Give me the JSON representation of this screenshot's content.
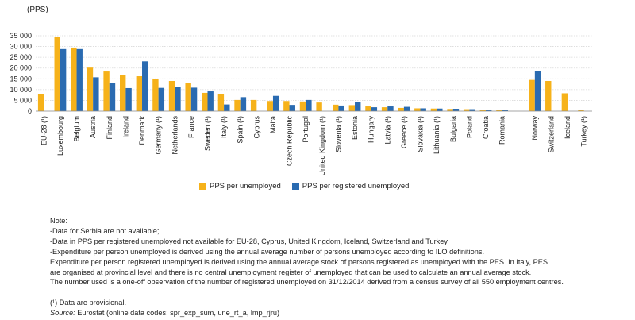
{
  "chart_data": {
    "type": "bar",
    "unit_label": "(PPS)",
    "y_ticks": [
      "0",
      "5 000",
      "10 000",
      "15 000",
      "20 000",
      "25 000",
      "30 000",
      "35 000"
    ],
    "ylim": [
      0,
      35000
    ],
    "grid": true,
    "legend_position": "bottom",
    "categories": [
      "EU-28 (¹)",
      "Luxembourg",
      "Belgium",
      "Austria",
      "Finland",
      "Ireland",
      "Denmark",
      "Germany (¹)",
      "Netherlands",
      "France",
      "Sweden (¹)",
      "Italy (¹)",
      "Spain (¹)",
      "Cyprus",
      "Malta",
      "Czech Republic",
      "Portugal",
      "United Kingdom (¹)",
      "Slovenia (¹)",
      "Estonia",
      "Hungary",
      "Latvia (¹)",
      "Greece (¹)",
      "Slovakia (¹)",
      "Lithuania (¹)",
      "Bulgaria",
      "Poland",
      "Croatia",
      "Romania",
      "",
      "Norway",
      "Switzerland",
      "Iceland",
      "Turkey (¹)"
    ],
    "series": [
      {
        "name": "PPS per unemployed",
        "color": "#f6b21a",
        "values": [
          7800,
          34500,
          29500,
          20200,
          18400,
          16900,
          16200,
          15100,
          14000,
          13000,
          8500,
          8000,
          5200,
          5200,
          4700,
          4700,
          4500,
          4000,
          3000,
          2800,
          2200,
          1800,
          1500,
          1300,
          1200,
          1000,
          900,
          700,
          500,
          null,
          14500,
          14000,
          8300,
          600
        ]
      },
      {
        "name": "PPS per registered unemployed",
        "color": "#2a6bb1",
        "values": [
          null,
          28800,
          28800,
          15700,
          13000,
          10700,
          23100,
          10800,
          11200,
          10900,
          9200,
          3100,
          6500,
          null,
          7100,
          2900,
          5200,
          null,
          2600,
          4100,
          1800,
          2200,
          2000,
          1300,
          1200,
          1100,
          900,
          600,
          700,
          null,
          18700,
          null,
          null,
          null
        ]
      }
    ]
  },
  "notes": {
    "heading": "Note:",
    "lines": [
      "-Data for Serbia are not available;",
      "-Data in PPS per registered unemployed not available for EU-28, Cyprus, United Kingdom, Iceland, Switzerland and Turkey.",
      "-Expenditure per person unemployed is derived using the annual average number of persons unemployed according to ILO definitions.",
      "Expenditure per person registered unemployed is derived using the annual average stock of persons registered as unemployed with the PES. In Italy, PES",
      "are organised at provincial level and there is no central unemployment register of unemployed that can be used to calculate an annual average stock.",
      "The number used is a one-off observation of the number of registered unemployed on 31/12/2014 derived from a census survey of all 550 employment centres."
    ],
    "provisional": "(¹) Data are provisional.",
    "source_label": "Source:",
    "source_text": " Eurostat (online data codes: spr_exp_sum, une_rt_a, lmp_rjru)"
  }
}
